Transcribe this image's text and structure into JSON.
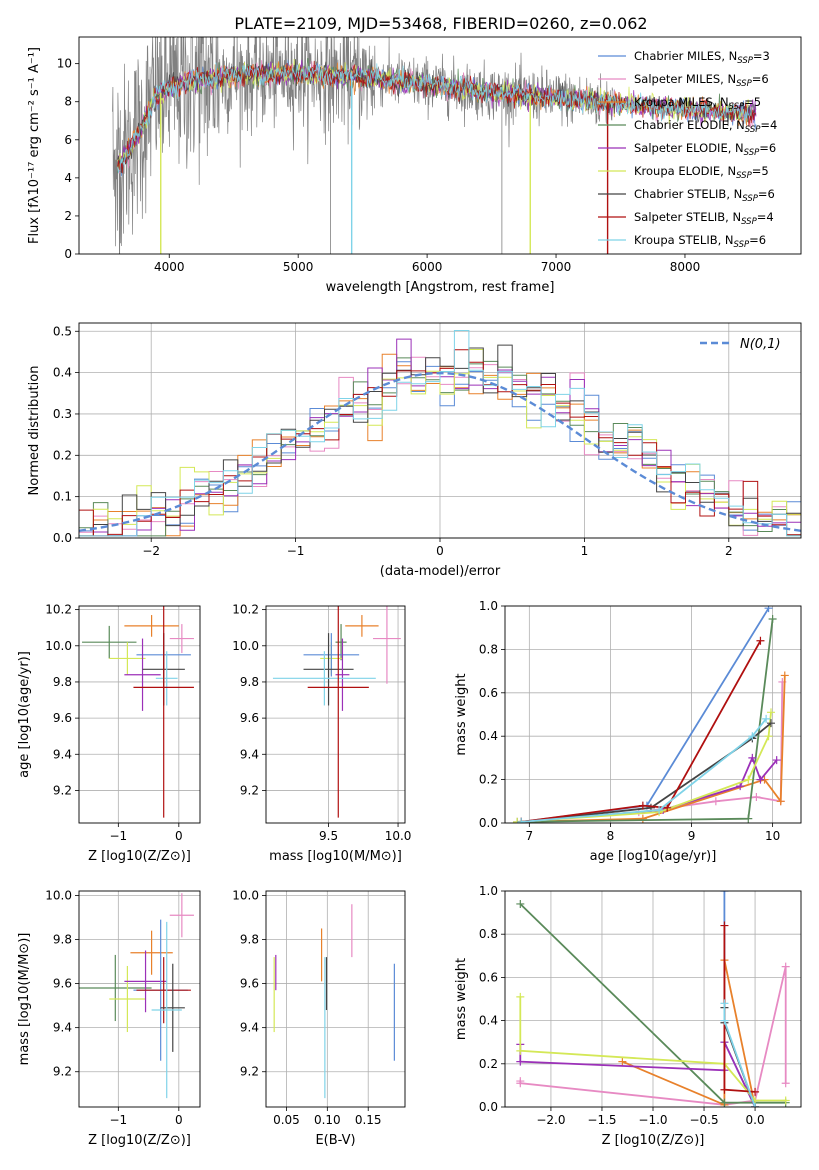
{
  "figure_title": "PLATE=2109, MJD=53468, FIBERID=0260, z=0.062",
  "palette": {
    "chabrier_miles": "#5b8bd6",
    "salpeter_miles": "#e78ac3",
    "kroupa_miles": "#e8812b",
    "chabrier_elodie": "#5a8a5a",
    "salpeter_elodie": "#9b30b8",
    "kroupa_elodie": "#d4e857",
    "chabrier_stelib": "#444444",
    "salpeter_stelib": "#b01010",
    "kroupa_stelib": "#7fd3e8",
    "data": "#808080"
  },
  "chart_data": [
    {
      "id": "spectrum",
      "type": "line",
      "xlabel": "wavelength [Angstrom, rest frame]",
      "ylabel": "Flux [fλ10⁻¹⁷ erg cm⁻² s⁻¹ A⁻¹]",
      "xlim": [
        3300,
        8900
      ],
      "ylim": [
        0,
        11.4
      ],
      "xticks": [
        4000,
        5000,
        6000,
        7000,
        8000
      ],
      "yticks": [
        0,
        2,
        4,
        6,
        8,
        10
      ],
      "grid": false,
      "legend_position": "top-right",
      "legend": [
        "Chabrier MILES, N_SSP=3",
        "Salpeter MILES, N_SSP=6",
        "Kroupa MILES, N_SSP=5",
        "Chabrier ELODIE, N_SSP=4",
        "Salpeter ELODIE, N_SSP=6",
        "Kroupa ELODIE, N_SSP=5",
        "Chabrier STELIB, N_SSP=6",
        "Salpeter STELIB, N_SSP=4",
        "Kroupa STELIB, N_SSP=6"
      ],
      "continuum_knots": {
        "x": [
          3600,
          3700,
          3800,
          3900,
          4000,
          4100,
          4300,
          4500,
          5000,
          5500,
          6000,
          6500,
          7000,
          7500,
          8000,
          8500
        ],
        "y": [
          4.6,
          5.6,
          6.8,
          8.4,
          8.6,
          9.0,
          9.2,
          9.4,
          9.5,
          9.3,
          8.9,
          8.5,
          8.2,
          7.9,
          7.6,
          7.4
        ]
      },
      "model_range": [
        3600,
        8500
      ],
      "absorption_dips": [
        {
          "x": 3934,
          "value": 0
        },
        {
          "x": 5415,
          "value": 0
        },
        {
          "x": 6800,
          "value": 0
        },
        {
          "x": 7400,
          "value": 0
        }
      ],
      "data_range": [
        3560,
        7440
      ]
    },
    {
      "id": "residuals",
      "type": "histogram",
      "xlabel": "(data-model)/error",
      "ylabel": "Normed distribution",
      "xlim": [
        -2.5,
        2.5
      ],
      "ylim": [
        0,
        0.52
      ],
      "xticks": [
        -2,
        -1,
        0,
        1,
        2
      ],
      "yticks": [
        0.0,
        0.1,
        0.2,
        0.3,
        0.4,
        0.5
      ],
      "grid": true,
      "legend": [
        "N(0,1)"
      ],
      "legend_position": "top-right",
      "bin_width": 0.1,
      "bin_start": -2.5,
      "normal_sigma": 1.0
    },
    {
      "id": "age_vs_Z",
      "type": "errorbar",
      "xlabel": "Z [log10(Z/Z⊙)]",
      "ylabel": "age  [log10(age/yr)]",
      "xlim": [
        -1.65,
        0.35
      ],
      "ylim": [
        9.02,
        10.22
      ],
      "xticks": [
        -1,
        0
      ],
      "yticks": [
        9.2,
        9.4,
        9.6,
        9.8,
        10.0,
        10.2
      ],
      "grid": true,
      "points": [
        {
          "model": "chabrier_elodie",
          "x": -1.15,
          "xerr": 0.45,
          "y": 10.02,
          "yerr": 0.09
        },
        {
          "model": "kroupa_miles",
          "x": -0.45,
          "xerr": 0.45,
          "y": 10.11,
          "yerr": 0.06
        },
        {
          "model": "salpeter_miles",
          "x": 0.05,
          "xerr": 0.2,
          "y": 10.04,
          "yerr": 0.08
        },
        {
          "model": "kroupa_elodie",
          "x": -0.85,
          "xerr": 0.3,
          "y": 9.93,
          "yerr": 0.09
        },
        {
          "model": "chabrier_miles",
          "x": -0.25,
          "xerr": 0.45,
          "y": 9.95,
          "yerr": 0.12
        },
        {
          "model": "salpeter_elodie",
          "x": -0.6,
          "xerr": 0.3,
          "y": 9.84,
          "yerr": 0.2
        },
        {
          "model": "chabrier_stelib",
          "x": -0.25,
          "xerr": 0.35,
          "y": 9.87,
          "yerr": 0.2
        },
        {
          "model": "kroupa_stelib",
          "x": -0.2,
          "xerr": 0.18,
          "y": 9.82,
          "yerr": 0.15
        },
        {
          "model": "salpeter_stelib",
          "x": -0.25,
          "xerr": 0.5,
          "y": 9.77,
          "yerr": 0.72
        }
      ]
    },
    {
      "id": "age_vs_mass",
      "type": "errorbar",
      "xlabel": "mass [log10(M/M⊙)]",
      "ylabel": "",
      "xlim": [
        9.05,
        10.05
      ],
      "ylim": [
        9.02,
        10.22
      ],
      "xticks": [
        9.5,
        10.0
      ],
      "yticks": [
        9.2,
        9.4,
        9.6,
        9.8,
        10.0,
        10.2
      ],
      "grid": true,
      "points": [
        {
          "model": "kroupa_miles",
          "x": 9.74,
          "xerr": 0.12,
          "y": 10.11,
          "yerr": 0.06
        },
        {
          "model": "salpeter_miles",
          "x": 9.92,
          "xerr": 0.1,
          "y": 10.04,
          "yerr": 0.25
        },
        {
          "model": "chabrier_elodie",
          "x": 9.59,
          "xerr": 0.04,
          "y": 10.02,
          "yerr": 0.1
        },
        {
          "model": "kroupa_elodie",
          "x": 9.52,
          "xerr": 0.08,
          "y": 9.93,
          "yerr": 0.09
        },
        {
          "model": "chabrier_miles",
          "x": 9.52,
          "xerr": 0.2,
          "y": 9.95,
          "yerr": 0.12
        },
        {
          "model": "chabrier_stelib",
          "x": 9.5,
          "xerr": 0.18,
          "y": 9.87,
          "yerr": 0.2
        },
        {
          "model": "salpeter_elodie",
          "x": 9.6,
          "xerr": 0.05,
          "y": 9.84,
          "yerr": 0.2
        },
        {
          "model": "kroupa_stelib",
          "x": 9.47,
          "xerr": 0.37,
          "y": 9.82,
          "yerr": 0.15
        },
        {
          "model": "salpeter_stelib",
          "x": 9.57,
          "xerr": 0.22,
          "y": 9.77,
          "yerr": 0.72
        }
      ]
    },
    {
      "id": "weight_vs_age",
      "type": "line",
      "xlabel": "age  [log10(age/yr)]",
      "ylabel": "mass weight",
      "xlim": [
        6.7,
        10.35
      ],
      "ylim": [
        0,
        1.0
      ],
      "xticks": [
        7,
        8,
        9,
        10
      ],
      "yticks": [
        0.0,
        0.2,
        0.4,
        0.6,
        0.8,
        1.0
      ],
      "grid": true,
      "series": [
        {
          "model": "chabrier_miles",
          "x": [
            6.9,
            8.45,
            9.95
          ],
          "y": [
            0.005,
            0.08,
            0.99
          ]
        },
        {
          "model": "salpeter_miles",
          "x": [
            6.85,
            8.35,
            9.3,
            9.8,
            10.1,
            10.12
          ],
          "y": [
            0.005,
            0.05,
            0.1,
            0.12,
            0.1,
            0.65
          ]
        },
        {
          "model": "kroupa_miles",
          "x": [
            6.9,
            8.4,
            9.9,
            10.1,
            10.15
          ],
          "y": [
            0.005,
            0.02,
            0.2,
            0.1,
            0.68
          ]
        },
        {
          "model": "chabrier_elodie",
          "x": [
            6.85,
            9.7,
            10.0
          ],
          "y": [
            0.005,
            0.02,
            0.94
          ]
        },
        {
          "model": "salpeter_elodie",
          "x": [
            6.9,
            8.65,
            9.6,
            9.75,
            9.85,
            10.05
          ],
          "y": [
            0.005,
            0.06,
            0.17,
            0.3,
            0.2,
            0.29
          ]
        },
        {
          "model": "kroupa_elodie",
          "x": [
            6.85,
            8.6,
            9.7,
            9.95,
            9.98
          ],
          "y": [
            0.005,
            0.05,
            0.2,
            0.4,
            0.51
          ]
        },
        {
          "model": "chabrier_stelib",
          "x": [
            6.9,
            8.5,
            9.75,
            9.98
          ],
          "y": [
            0.005,
            0.07,
            0.39,
            0.46
          ]
        },
        {
          "model": "salpeter_stelib",
          "x": [
            6.9,
            8.4,
            8.7,
            9.85
          ],
          "y": [
            0.005,
            0.08,
            0.07,
            0.84
          ]
        },
        {
          "model": "kroupa_stelib",
          "x": [
            6.9,
            8.6,
            9.75,
            9.92
          ],
          "y": [
            0.005,
            0.06,
            0.4,
            0.48
          ]
        }
      ]
    },
    {
      "id": "mass_vs_Z",
      "type": "errorbar",
      "xlabel": "Z [log10(Z/Z⊙)]",
      "ylabel": "mass [log10(M/M⊙)]",
      "xlim": [
        -1.65,
        0.35
      ],
      "ylim": [
        9.04,
        10.02
      ],
      "xticks": [
        -1,
        0
      ],
      "yticks": [
        9.2,
        9.4,
        9.6,
        9.8,
        10.0
      ],
      "grid": true,
      "points": [
        {
          "model": "salpeter_miles",
          "x": 0.05,
          "xerr": 0.2,
          "y": 9.91,
          "yerr": 0.1
        },
        {
          "model": "kroupa_miles",
          "x": -0.45,
          "xerr": 0.35,
          "y": 9.74,
          "yerr": 0.1
        },
        {
          "model": "chabrier_elodie",
          "x": -1.05,
          "xerr": 0.6,
          "y": 9.58,
          "yerr": 0.15
        },
        {
          "model": "kroupa_elodie",
          "x": -0.85,
          "xerr": 0.3,
          "y": 9.53,
          "yerr": 0.15
        },
        {
          "model": "salpeter_elodie",
          "x": -0.55,
          "xerr": 0.35,
          "y": 9.61,
          "yerr": 0.14
        },
        {
          "model": "chabrier_miles",
          "x": -0.3,
          "xerr": 0.45,
          "y": 9.57,
          "yerr": 0.32
        },
        {
          "model": "salpeter_stelib",
          "x": -0.25,
          "xerr": 0.45,
          "y": 9.57,
          "yerr": 0.15
        },
        {
          "model": "chabrier_stelib",
          "x": -0.1,
          "xerr": 0.2,
          "y": 9.49,
          "yerr": 0.2
        },
        {
          "model": "kroupa_stelib",
          "x": -0.2,
          "xerr": 0.25,
          "y": 9.48,
          "yerr": 0.4
        }
      ]
    },
    {
      "id": "mass_vs_ebv",
      "type": "errorbar",
      "xlabel": "E(B-V)",
      "ylabel": "",
      "xlim": [
        0.025,
        0.195
      ],
      "ylim": [
        9.04,
        10.02
      ],
      "xticks": [
        0.05,
        0.1,
        0.15
      ],
      "yticks": [
        9.2,
        9.4,
        9.6,
        9.8,
        10.0
      ],
      "grid": true,
      "points": [
        {
          "model": "kroupa_elodie",
          "x": 0.035,
          "xerr": 0,
          "y": 9.55,
          "yerr": 0.17
        },
        {
          "model": "salpeter_elodie",
          "x": 0.037,
          "xerr": 0,
          "y": 9.65,
          "yerr": 0.08
        },
        {
          "model": "kroupa_miles",
          "x": 0.093,
          "xerr": 0,
          "y": 9.73,
          "yerr": 0.12
        },
        {
          "model": "kroupa_stelib",
          "x": 0.097,
          "xerr": 0,
          "y": 9.4,
          "yerr": 0.32
        },
        {
          "model": "chabrier_stelib",
          "x": 0.099,
          "xerr": 0,
          "y": 9.6,
          "yerr": 0.12
        },
        {
          "model": "salpeter_miles",
          "x": 0.13,
          "xerr": 0,
          "y": 9.84,
          "yerr": 0.12
        },
        {
          "model": "chabrier_miles",
          "x": 0.182,
          "xerr": 0,
          "y": 9.47,
          "yerr": 0.22
        }
      ]
    },
    {
      "id": "weight_vs_Z",
      "type": "line",
      "xlabel": "Z [log10(Z/Z⊙)]",
      "ylabel": "mass weight",
      "xlim": [
        -2.45,
        0.45
      ],
      "ylim": [
        0,
        1.0
      ],
      "xticks": [
        -2.0,
        -1.5,
        -1.0,
        -0.5,
        0.0
      ],
      "yticks": [
        0.0,
        0.2,
        0.4,
        0.6,
        0.8,
        1.0
      ],
      "grid": true,
      "series": [
        {
          "model": "chabrier_miles",
          "x": [
            -0.3,
            -0.3,
            0.0
          ],
          "y": [
            1.0,
            0.3,
            0.0
          ]
        },
        {
          "model": "salpeter_miles",
          "x": [
            -2.3,
            -2.3,
            -0.3,
            0.0,
            0.3,
            0.3
          ],
          "y": [
            0.12,
            0.11,
            0.01,
            0.03,
            0.65,
            0.11
          ]
        },
        {
          "model": "kroupa_miles",
          "x": [
            -1.3,
            -0.3,
            -0.3,
            0.0
          ],
          "y": [
            0.21,
            0.01,
            0.68,
            0.0
          ]
        },
        {
          "model": "chabrier_elodie",
          "x": [
            -2.3,
            -0.3,
            0.0,
            0.3
          ],
          "y": [
            0.94,
            0.02,
            0.02,
            0.02
          ]
        },
        {
          "model": "salpeter_elodie",
          "x": [
            -2.3,
            -2.3,
            -0.3,
            -0.3,
            0.0
          ],
          "y": [
            0.29,
            0.21,
            0.17,
            0.3,
            0.0
          ]
        },
        {
          "model": "kroupa_elodie",
          "x": [
            -2.3,
            -2.3,
            -0.3,
            0.0,
            0.3
          ],
          "y": [
            0.51,
            0.26,
            0.2,
            0.03,
            0.03
          ]
        },
        {
          "model": "chabrier_stelib",
          "x": [
            -0.3,
            -0.3,
            0.0
          ],
          "y": [
            0.46,
            0.39,
            0.0
          ]
        },
        {
          "model": "salpeter_stelib",
          "x": [
            -0.3,
            -0.3,
            0.0
          ],
          "y": [
            0.84,
            0.08,
            0.07
          ]
        },
        {
          "model": "kroupa_stelib",
          "x": [
            -0.3,
            -0.3,
            0.0
          ],
          "y": [
            0.48,
            0.4,
            0.0
          ]
        }
      ]
    }
  ]
}
